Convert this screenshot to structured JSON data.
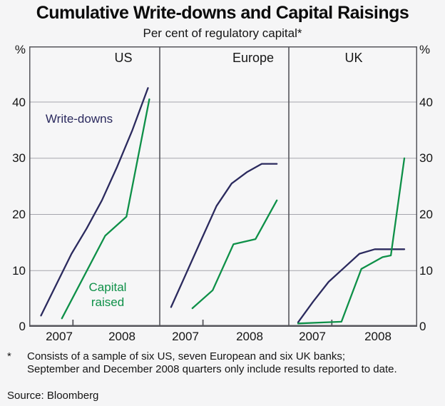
{
  "title": "Cumulative Write-downs and Capital Raisings",
  "subtitle": "Per cent of regulatory capital*",
  "footnote": {
    "marker": "*",
    "text": "Consists of a sample of six US, seven European and six UK banks; September and December 2008 quarters only include results reported to date."
  },
  "source": "Source: Bloomberg",
  "chart_data": {
    "type": "line",
    "title": "Cumulative Write-downs and Capital Raisings",
    "subtitle": "Per cent of regulatory capital*",
    "unit": "per cent of regulatory capital",
    "grid": true,
    "y_axis": {
      "min": 0,
      "max": 50,
      "ticks": [
        0,
        10,
        20,
        30,
        40
      ],
      "tick_labels": [
        "0",
        "10",
        "20",
        "30",
        "40"
      ],
      "unit_label": "%",
      "label_sides": "both"
    },
    "x_axis": {
      "year_labels": [
        "2007",
        "2008"
      ],
      "range": "Mar 2007 to Dec 2008, quarterly",
      "tick_xfrac": 0.335
    },
    "colors": {
      "write_downs": "#2b2a5e",
      "capital_raised": "#0e9048",
      "frame": "#55555b",
      "gridline": "#a5a5ad"
    },
    "series_labels": {
      "write_downs": "Write-downs",
      "capital_raised": "Capital raised"
    },
    "panels": [
      {
        "title": "US",
        "series": [
          {
            "name": "Write-downs",
            "color_key": "write_downs",
            "points": [
              [
                0.09,
                2
              ],
              [
                0.207,
                7.5
              ],
              [
                0.324,
                13
              ],
              [
                0.44,
                17.5
              ],
              [
                0.557,
                22.5
              ],
              [
                0.674,
                28.5
              ],
              [
                0.79,
                35
              ],
              [
                0.91,
                42.5
              ]
            ]
          },
          {
            "name": "Capital raised",
            "color_key": "capital_raised",
            "points": [
              [
                0.25,
                1.5
              ],
              [
                0.582,
                16.2
              ],
              [
                0.745,
                19.6
              ],
              [
                0.92,
                40.5
              ]
            ]
          }
        ]
      },
      {
        "title": "Europe",
        "series": [
          {
            "name": "Write-downs",
            "color_key": "write_downs",
            "points": [
              [
                0.088,
                3.5
              ],
              [
                0.205,
                9.5
              ],
              [
                0.322,
                15.5
              ],
              [
                0.44,
                21.5
              ],
              [
                0.557,
                25.5
              ],
              [
                0.674,
                27.5
              ],
              [
                0.79,
                29
              ],
              [
                0.907,
                29
              ]
            ]
          },
          {
            "name": "Capital raised",
            "color_key": "capital_raised",
            "points": [
              [
                0.253,
                3.3
              ],
              [
                0.41,
                6.5
              ],
              [
                0.571,
                14.7
              ],
              [
                0.742,
                15.6
              ],
              [
                0.907,
                22.5
              ]
            ]
          }
        ]
      },
      {
        "title": "UK",
        "series": [
          {
            "name": "Write-downs",
            "color_key": "write_downs",
            "points": [
              [
                0.072,
                0.8
              ],
              [
                0.19,
                4.5
              ],
              [
                0.31,
                8
              ],
              [
                0.43,
                10.5
              ],
              [
                0.55,
                13
              ],
              [
                0.67,
                13.8
              ],
              [
                0.79,
                13.8
              ],
              [
                0.9,
                13.8
              ]
            ]
          },
          {
            "name": "Capital raised",
            "color_key": "capital_raised",
            "points": [
              [
                0.072,
                0.6
              ],
              [
                0.41,
                0.9
              ],
              [
                0.565,
                10.3
              ],
              [
                0.73,
                12.4
              ],
              [
                0.795,
                12.7
              ],
              [
                0.9,
                30
              ]
            ]
          }
        ]
      }
    ],
    "note": "points are [x fraction of panel width, per cent of regulatory capital]"
  }
}
